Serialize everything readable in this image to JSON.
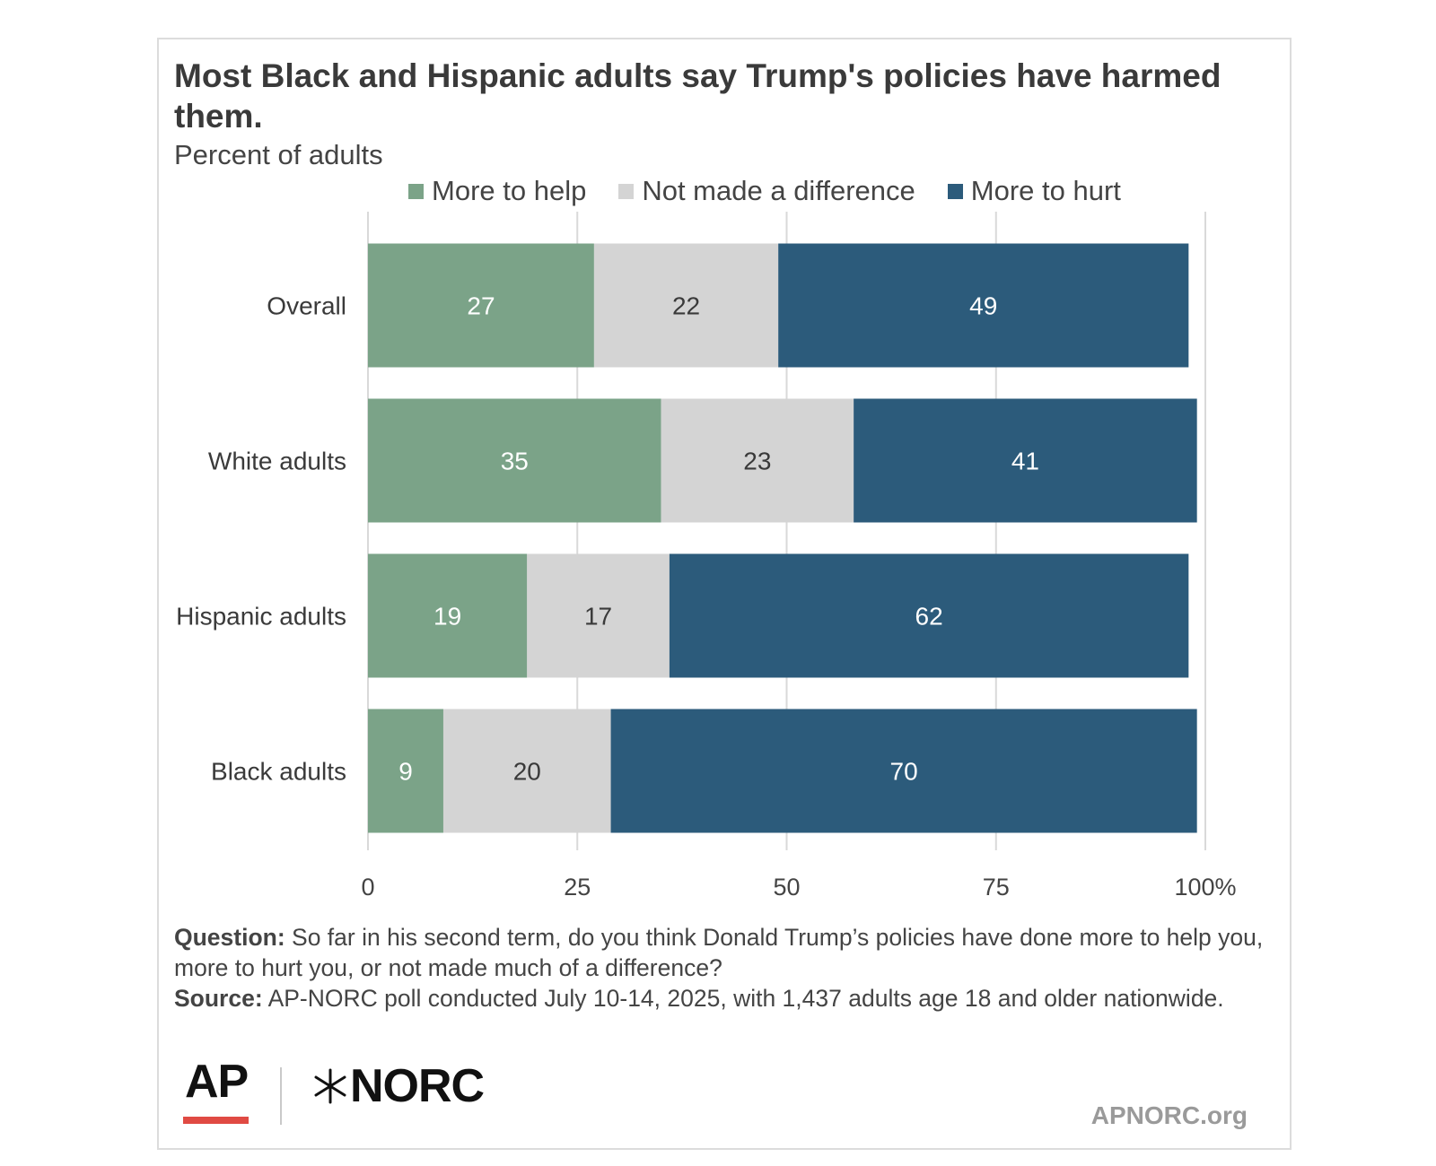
{
  "title": "Most Black and Hispanic adults say Trump's policies have harmed them.",
  "subtitle": "Percent of adults",
  "chart_data": {
    "type": "bar",
    "orientation": "horizontal",
    "stacked": true,
    "title": "Most Black and Hispanic adults say Trump's policies have harmed them.",
    "subtitle": "Percent of adults",
    "categories": [
      "Overall",
      "White adults",
      "Hispanic adults",
      "Black adults"
    ],
    "series": [
      {
        "name": "More to help",
        "color": "#7ba388",
        "label_color": "#ffffff",
        "values": [
          27,
          35,
          19,
          9
        ]
      },
      {
        "name": "Not made a difference",
        "color": "#d4d4d4",
        "label_color": "#3a3a3a",
        "values": [
          22,
          23,
          17,
          20
        ]
      },
      {
        "name": "More to hurt",
        "color": "#2c5b7b",
        "label_color": "#ffffff",
        "values": [
          49,
          41,
          62,
          70
        ]
      }
    ],
    "xlim": [
      0,
      100
    ],
    "x_ticks": [
      0,
      25,
      50,
      75,
      100
    ],
    "x_tick_labels": [
      "0",
      "25",
      "50",
      "75",
      "100%"
    ],
    "grid": true,
    "legend": "top"
  },
  "footer": {
    "question_label": "Question:",
    "question_text": " So far in his second term, do you think Donald Trump’s policies have done more to help you, more to hurt you, or not made much of a difference?",
    "source_label": "Source:",
    "source_text": " AP-NORC poll conducted July 10-14, 2025, with 1,437 adults age 18 and older nationwide."
  },
  "logos": {
    "ap": "AP",
    "norc": "NORC"
  },
  "site": "APNORC.org"
}
